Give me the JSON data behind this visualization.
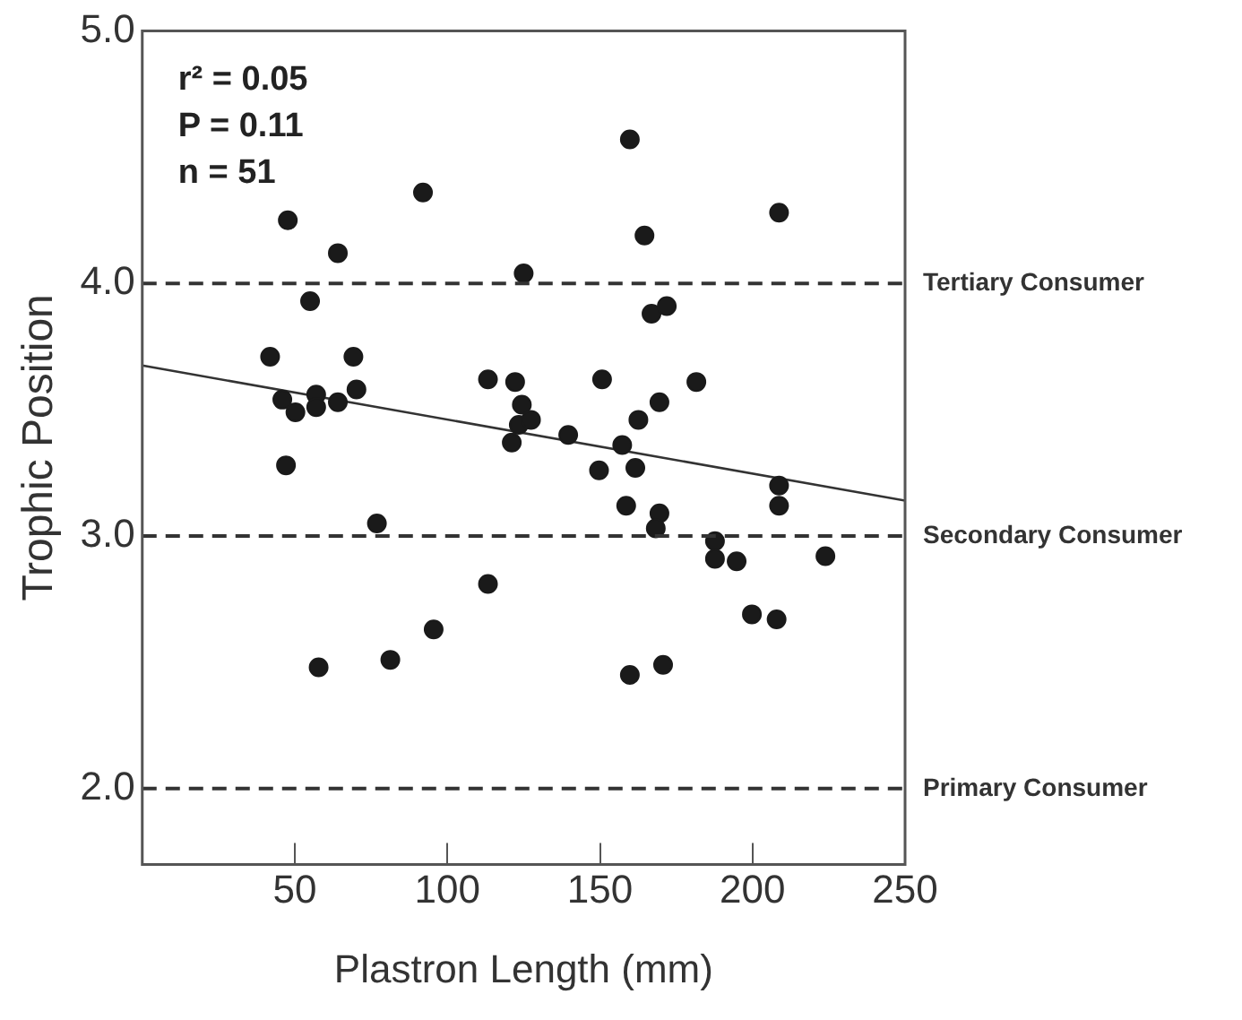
{
  "chart_data": {
    "type": "scatter",
    "xlabel": "Plastron Length (mm)",
    "ylabel": "Trophic Position",
    "xlim": [
      0,
      250
    ],
    "xticks": [
      50,
      100,
      150,
      200,
      250
    ],
    "ylim": [
      1.7,
      5.0
    ],
    "yticks": [
      {
        "value": 2,
        "label": "2.0"
      },
      {
        "value": 3,
        "label": "3.0"
      },
      {
        "value": 4,
        "label": "4.0"
      },
      {
        "value": 5,
        "label": "5.0"
      }
    ],
    "grid": false,
    "legend": false,
    "series": [
      {
        "color": "#1a1a1a",
        "marker": "circle",
        "x": [
          92,
          47.7,
          64.1,
          55,
          41.9,
          69.2,
          45.9,
          57,
          50.2,
          57,
          64.1,
          70.2,
          47.1,
          113.3,
          122.2,
          124.4,
          123.4,
          121.1,
          125,
          127.4,
          159.8,
          208.7,
          164.6,
          166.9,
          171.9,
          150.7,
          181.6,
          169.5,
          162.6,
          139.6,
          157.3,
          149.7,
          161.6,
          208.7,
          158.6,
          169.5,
          208.7,
          168.3,
          187.7,
          187.7,
          194.8,
          223.9,
          199.8,
          207.9,
          159.8,
          170.7,
          76.9,
          113.3,
          95.5,
          81.3,
          57.8
        ],
        "values": [
          4.36,
          4.25,
          4.12,
          3.93,
          3.71,
          3.71,
          3.54,
          3.56,
          3.49,
          3.51,
          3.53,
          3.58,
          3.28,
          3.62,
          3.61,
          3.52,
          3.44,
          3.37,
          4.04,
          3.46,
          4.57,
          4.28,
          4.19,
          3.88,
          3.91,
          3.62,
          3.61,
          3.53,
          3.46,
          3.4,
          3.36,
          3.26,
          3.27,
          3.2,
          3.12,
          3.09,
          3.12,
          3.03,
          2.98,
          2.91,
          2.9,
          2.92,
          2.69,
          2.67,
          2.45,
          2.49,
          3.05,
          2.81,
          2.63,
          2.51,
          2.48
        ]
      },
      {
        "type": "line",
        "color": "#333333",
        "marker": "none",
        "line_style": "solid",
        "x": [
          0,
          250
        ],
        "values": [
          3.675,
          3.14
        ]
      }
    ],
    "ref_lines": [
      {
        "axis": "y",
        "value": 4,
        "label": "Tertiary Consumer",
        "color": "#333333",
        "line_style": "dashed"
      },
      {
        "axis": "y",
        "value": 3,
        "label": "Secondary Consumer",
        "color": "#333333",
        "line_style": "dashed"
      },
      {
        "axis": "y",
        "value": 2,
        "label": "Primary Consumer",
        "color": "#333333",
        "line_style": "dashed"
      }
    ],
    "annotations": [
      "r² = 0.05",
      "P = 0.11",
      "n = 51"
    ]
  }
}
